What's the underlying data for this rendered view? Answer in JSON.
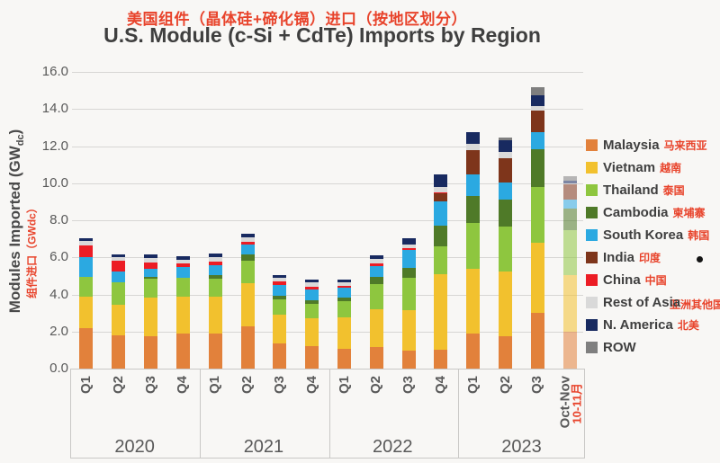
{
  "title": {
    "zh": "美国组件（晶体硅+碲化镉）进口（按地区划分）",
    "en": "U.S. Module (c-Si + CdTe) Imports by Region"
  },
  "y_axis": {
    "label_main": "Modules Imported (GW",
    "label_sub": "dc",
    "label_close": ")",
    "label_zh": "组件进口（GWdc）",
    "ticks": [
      "0.0",
      "2.0",
      "4.0",
      "6.0",
      "8.0",
      "10.0",
      "12.0",
      "14.0",
      "16.0"
    ]
  },
  "x_axis": {
    "groups": [
      {
        "year": "2020",
        "quarters": [
          "Q1",
          "Q2",
          "Q3",
          "Q4"
        ]
      },
      {
        "year": "2021",
        "quarters": [
          "Q1",
          "Q2",
          "Q3",
          "Q4"
        ]
      },
      {
        "year": "2022",
        "quarters": [
          "Q1",
          "Q2",
          "Q3",
          "Q4"
        ]
      },
      {
        "year": "2023",
        "quarters": [
          "Q1",
          "Q2",
          "Q3"
        ],
        "special_label": "Oct-Nov",
        "special_label_zh": "10-11月"
      }
    ]
  },
  "legend": {
    "items": [
      {
        "label": "Malaysia",
        "zh": "马来西亚",
        "color": "#e2813b",
        "overlap": false
      },
      {
        "label": "Vietnam",
        "zh": "越南",
        "color": "#f2c12e",
        "overlap": false
      },
      {
        "label": "Thailand",
        "zh": "泰国",
        "color": "#8ec63f",
        "overlap": false
      },
      {
        "label": "Cambodia",
        "zh": "柬埔寨",
        "color": "#4f7a28",
        "overlap": false
      },
      {
        "label": "South Korea",
        "zh": "韩国",
        "color": "#2ba9e1",
        "overlap": false
      },
      {
        "label": "India",
        "zh": "印度",
        "color": "#7e351b",
        "overlap": false
      },
      {
        "label": "China",
        "zh": "中国",
        "color": "#ec1c24",
        "overlap": false
      },
      {
        "label": "Rest of Asia",
        "zh": "亚洲其他国家",
        "color": "#d9d9d9",
        "overlap": true
      },
      {
        "label": "N. America",
        "zh": "北美",
        "color": "#182a60",
        "overlap": false
      },
      {
        "label": "ROW",
        "zh": "",
        "color": "#7f7f7f",
        "overlap": false
      }
    ]
  },
  "chart_data": {
    "type": "bar",
    "stacked": true,
    "title": "U.S. Module (c-Si + CdTe) Imports by Region",
    "ylabel": "Modules Imported (GWdc)",
    "ylim": [
      0,
      16
    ],
    "ytick_step": 2,
    "grid": true,
    "legend_position": "right",
    "categories": [
      "2020 Q1",
      "2020 Q2",
      "2020 Q3",
      "2020 Q4",
      "2021 Q1",
      "2021 Q2",
      "2021 Q3",
      "2021 Q4",
      "2022 Q1",
      "2022 Q2",
      "2022 Q3",
      "2022 Q4",
      "2023 Q1",
      "2023 Q2",
      "2023 Q3",
      "2023 Oct-Nov"
    ],
    "faded_last_category": true,
    "series": [
      {
        "name": "Malaysia",
        "color": "#e2813b",
        "values": [
          2.2,
          1.8,
          1.75,
          1.9,
          1.9,
          2.3,
          1.35,
          1.2,
          1.05,
          1.15,
          0.95,
          1.0,
          1.9,
          1.75,
          3.0,
          2.0
        ]
      },
      {
        "name": "Vietnam",
        "color": "#f2c12e",
        "values": [
          1.7,
          1.65,
          2.1,
          2.0,
          2.0,
          2.3,
          1.55,
          1.5,
          1.7,
          2.05,
          2.2,
          4.1,
          3.5,
          3.5,
          3.8,
          3.05
        ]
      },
      {
        "name": "Thailand",
        "color": "#8ec63f",
        "values": [
          1.05,
          1.2,
          1.0,
          1.0,
          0.95,
          1.2,
          0.85,
          0.8,
          0.9,
          1.35,
          1.75,
          1.5,
          2.45,
          2.4,
          3.0,
          2.4
        ]
      },
      {
        "name": "Cambodia",
        "color": "#4f7a28",
        "values": [
          0,
          0,
          0.1,
          0,
          0.2,
          0.35,
          0.2,
          0.2,
          0.2,
          0.4,
          0.55,
          1.1,
          1.45,
          1.45,
          2.05,
          1.2
        ]
      },
      {
        "name": "South Korea",
        "color": "#2ba9e1",
        "values": [
          1.05,
          0.6,
          0.45,
          0.6,
          0.55,
          0.55,
          0.55,
          0.55,
          0.5,
          0.6,
          0.95,
          1.3,
          1.15,
          0.95,
          0.9,
          0.45
        ]
      },
      {
        "name": "India",
        "color": "#7e351b",
        "values": [
          0,
          0,
          0,
          0,
          0,
          0,
          0,
          0,
          0,
          0,
          0,
          0.45,
          1.35,
          1.3,
          1.15,
          0.85
        ]
      },
      {
        "name": "China",
        "color": "#ec1c24",
        "values": [
          0.65,
          0.55,
          0.3,
          0.15,
          0.15,
          0.15,
          0.2,
          0.15,
          0.1,
          0.1,
          0.1,
          0.05,
          0,
          0,
          0,
          0
        ]
      },
      {
        "name": "Rest of Asia",
        "color": "#d9d9d9",
        "values": [
          0.25,
          0.2,
          0.25,
          0.2,
          0.25,
          0.25,
          0.2,
          0.25,
          0.2,
          0.25,
          0.2,
          0.3,
          0.3,
          0.35,
          0.25,
          0.05
        ]
      },
      {
        "name": "N. America",
        "color": "#182a60",
        "values": [
          0.15,
          0.15,
          0.2,
          0.2,
          0.2,
          0.15,
          0.15,
          0.15,
          0.15,
          0.2,
          0.35,
          0.65,
          0.65,
          0.6,
          0.6,
          0.15
        ]
      },
      {
        "name": "ROW",
        "color": "#7f7f7f",
        "values": [
          0,
          0,
          0,
          0,
          0,
          0,
          0,
          0,
          0,
          0,
          0,
          0,
          0,
          0.15,
          0.45,
          0.25
        ]
      }
    ]
  }
}
